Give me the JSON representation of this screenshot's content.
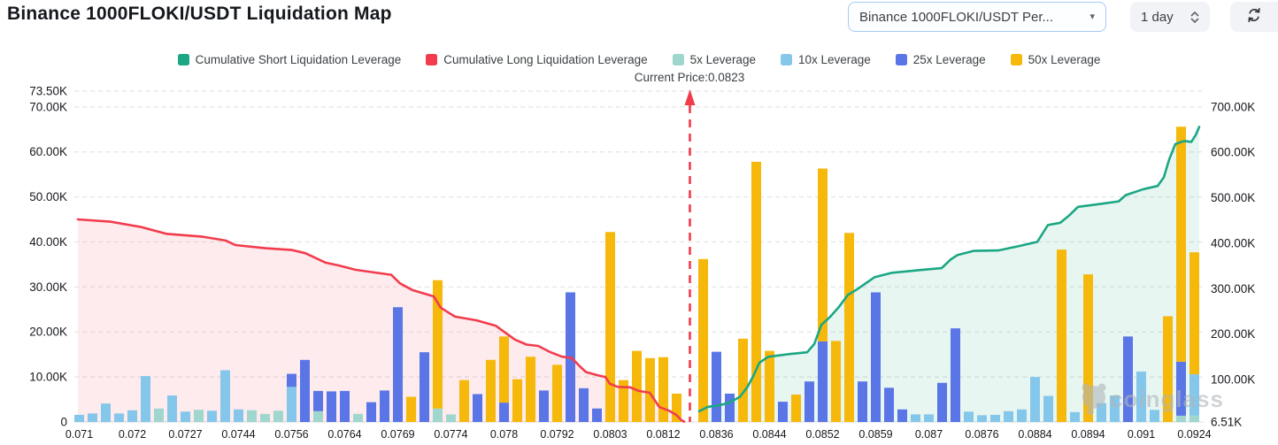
{
  "header": {
    "title": "Binance 1000FLOKI/USDT Liquidation Map",
    "symbol_selector": "Binance 1000FLOKI/USDT Per...",
    "interval_selector": "1 day"
  },
  "annotation": {
    "current_price_label": "Current Price:0.0823",
    "current_price": "0.0823",
    "price_x": 779
  },
  "watermark": {
    "text": "coinglass"
  },
  "legend": [
    {
      "key": "short_line",
      "label": "Cumulative Short Liquidation Leverage",
      "color": "#1ba784"
    },
    {
      "key": "long_line",
      "label": "Cumulative Long Liquidation Leverage",
      "color": "#f23c4d"
    },
    {
      "key": "5x",
      "label": "5x Leverage",
      "color": "#9fd6ce"
    },
    {
      "key": "10x",
      "label": "10x Leverage",
      "color": "#85c7ea"
    },
    {
      "key": "25x",
      "label": "25x Leverage",
      "color": "#5a75e6"
    },
    {
      "key": "50x",
      "label": "50x Leverage",
      "color": "#f5b80b"
    }
  ],
  "chart_data": {
    "type": "bar",
    "title": "Binance 1000FLOKI/USDT Liquidation Map",
    "grid": true,
    "left_axis": {
      "unit": "K",
      "ticks": [
        "73.50K",
        "70.00K",
        "60.00K",
        "50.00K",
        "40.00K",
        "30.00K",
        "20.00K",
        "10.00K",
        "0"
      ],
      "values": [
        73.5,
        70,
        60,
        50,
        40,
        30,
        20,
        10,
        0
      ],
      "max": 73.5
    },
    "right_axis": {
      "unit": "K",
      "ticks": [
        "700.00K",
        "600.00K",
        "500.00K",
        "400.00K",
        "300.00K",
        "200.00K",
        "100.00K",
        "6.51K"
      ],
      "values": [
        700,
        600,
        500,
        400,
        300,
        200,
        100,
        6.51
      ]
    },
    "x_labels": [
      "0.071",
      "0.072",
      "0.0727",
      "0.0744",
      "0.0756",
      "0.0764",
      "0.0769",
      "0.0774",
      "0.078",
      "0.0792",
      "0.0803",
      "0.0812",
      "0.0836",
      "0.0844",
      "0.0852",
      "0.0859",
      "0.087",
      "0.0876",
      "0.0884",
      "0.0894",
      "0.091",
      "0.0924"
    ],
    "bars_unit": "K (left axis)",
    "bars": [
      {
        "slot": 0,
        "label": "0.071",
        "segments": [
          [
            "10x",
            1.6
          ]
        ]
      },
      {
        "slot": 1,
        "segments": [
          [
            "10x",
            1.9
          ]
        ]
      },
      {
        "slot": 2,
        "segments": [
          [
            "10x",
            4.1
          ]
        ]
      },
      {
        "slot": 3,
        "segments": [
          [
            "10x",
            1.9
          ]
        ]
      },
      {
        "slot": 4,
        "label": "0.072",
        "segments": [
          [
            "10x",
            2.6
          ]
        ]
      },
      {
        "slot": 5,
        "segments": [
          [
            "10x",
            10.2
          ]
        ]
      },
      {
        "slot": 6,
        "segments": [
          [
            "5x",
            3.0
          ]
        ]
      },
      {
        "slot": 7,
        "segments": [
          [
            "10x",
            5.9
          ]
        ]
      },
      {
        "slot": 8,
        "label": "0.0727",
        "segments": [
          [
            "10x",
            2.3
          ]
        ]
      },
      {
        "slot": 9,
        "segments": [
          [
            "5x",
            2.7
          ]
        ]
      },
      {
        "slot": 10,
        "segments": [
          [
            "10x",
            2.5
          ]
        ]
      },
      {
        "slot": 11,
        "segments": [
          [
            "10x",
            11.5
          ]
        ]
      },
      {
        "slot": 12,
        "label": "0.0744",
        "segments": [
          [
            "10x",
            2.8
          ]
        ]
      },
      {
        "slot": 13,
        "segments": [
          [
            "5x",
            2.6
          ]
        ]
      },
      {
        "slot": 14,
        "segments": [
          [
            "5x",
            1.8
          ]
        ]
      },
      {
        "slot": 15,
        "segments": [
          [
            "5x",
            2.5
          ]
        ]
      },
      {
        "slot": 16,
        "label": "0.0756",
        "segments": [
          [
            "10x",
            7.8
          ],
          [
            "25x",
            2.9
          ]
        ]
      },
      {
        "slot": 17,
        "segments": [
          [
            "25x",
            13.8
          ]
        ]
      },
      {
        "slot": 18,
        "segments": [
          [
            "5x",
            2.4
          ],
          [
            "25x",
            4.5
          ]
        ]
      },
      {
        "slot": 19,
        "segments": [
          [
            "25x",
            6.8
          ]
        ]
      },
      {
        "slot": 20,
        "label": "0.0764",
        "segments": [
          [
            "25x",
            6.9
          ]
        ]
      },
      {
        "slot": 21,
        "segments": [
          [
            "5x",
            1.8
          ]
        ]
      },
      {
        "slot": 22,
        "segments": [
          [
            "25x",
            4.4
          ]
        ]
      },
      {
        "slot": 23,
        "segments": [
          [
            "25x",
            7.0
          ]
        ]
      },
      {
        "slot": 24,
        "label": "0.0769",
        "segments": [
          [
            "25x",
            25.5
          ]
        ]
      },
      {
        "slot": 25,
        "segments": [
          [
            "50x",
            5.6
          ]
        ]
      },
      {
        "slot": 26,
        "segments": [
          [
            "25x",
            15.5
          ]
        ]
      },
      {
        "slot": 27,
        "segments": [
          [
            "5x",
            3.0
          ],
          [
            "50x",
            28.5
          ]
        ]
      },
      {
        "slot": 28,
        "label": "0.0774",
        "segments": [
          [
            "5x",
            1.7
          ]
        ]
      },
      {
        "slot": 29,
        "segments": [
          [
            "50x",
            9.3
          ]
        ]
      },
      {
        "slot": 30,
        "segments": [
          [
            "25x",
            6.2
          ]
        ]
      },
      {
        "slot": 31,
        "segments": [
          [
            "50x",
            13.8
          ]
        ]
      },
      {
        "slot": 32,
        "label": "0.078",
        "segments": [
          [
            "25x",
            4.3
          ],
          [
            "50x",
            14.7
          ]
        ]
      },
      {
        "slot": 33,
        "segments": [
          [
            "50x",
            9.5
          ]
        ]
      },
      {
        "slot": 34,
        "segments": [
          [
            "50x",
            14.5
          ]
        ]
      },
      {
        "slot": 35,
        "segments": [
          [
            "25x",
            7.0
          ]
        ]
      },
      {
        "slot": 36,
        "label": "0.0792",
        "segments": [
          [
            "50x",
            12.7
          ]
        ]
      },
      {
        "slot": 37,
        "segments": [
          [
            "25x",
            28.8
          ]
        ]
      },
      {
        "slot": 38,
        "segments": [
          [
            "25x",
            7.5
          ]
        ]
      },
      {
        "slot": 39,
        "segments": [
          [
            "25x",
            3.0
          ]
        ]
      },
      {
        "slot": 40,
        "label": "0.0803",
        "segments": [
          [
            "50x",
            42.2
          ]
        ]
      },
      {
        "slot": 41,
        "segments": [
          [
            "50x",
            9.3
          ]
        ]
      },
      {
        "slot": 42,
        "segments": [
          [
            "50x",
            15.8
          ]
        ]
      },
      {
        "slot": 43,
        "segments": [
          [
            "50x",
            14.2
          ]
        ]
      },
      {
        "slot": 44,
        "label": "0.0812",
        "segments": [
          [
            "50x",
            14.4
          ]
        ]
      },
      {
        "slot": 45,
        "segments": [
          [
            "50x",
            6.3
          ]
        ]
      },
      {
        "slot": 47,
        "segments": [
          [
            "50x",
            36.2
          ]
        ]
      },
      {
        "slot": 48,
        "label": "0.0836",
        "segments": [
          [
            "25x",
            15.6
          ]
        ]
      },
      {
        "slot": 49,
        "segments": [
          [
            "25x",
            6.3
          ]
        ]
      },
      {
        "slot": 50,
        "segments": [
          [
            "50x",
            18.5
          ]
        ]
      },
      {
        "slot": 51,
        "segments": [
          [
            "50x",
            57.8
          ]
        ]
      },
      {
        "slot": 52,
        "label": "0.0844",
        "segments": [
          [
            "50x",
            15.8
          ]
        ]
      },
      {
        "slot": 53,
        "segments": [
          [
            "25x",
            4.5
          ]
        ]
      },
      {
        "slot": 54,
        "segments": [
          [
            "50x",
            6.1
          ]
        ]
      },
      {
        "slot": 55,
        "segments": [
          [
            "25x",
            9.0
          ]
        ]
      },
      {
        "slot": 56,
        "label": "0.0852",
        "segments": [
          [
            "25x",
            17.9
          ],
          [
            "50x",
            38.4
          ]
        ]
      },
      {
        "slot": 57,
        "segments": [
          [
            "50x",
            18.0
          ]
        ]
      },
      {
        "slot": 58,
        "segments": [
          [
            "50x",
            42.0
          ]
        ]
      },
      {
        "slot": 59,
        "segments": [
          [
            "25x",
            9.0
          ]
        ]
      },
      {
        "slot": 60,
        "label": "0.0859",
        "segments": [
          [
            "25x",
            28.8
          ]
        ]
      },
      {
        "slot": 61,
        "segments": [
          [
            "25x",
            7.6
          ]
        ]
      },
      {
        "slot": 62,
        "segments": [
          [
            "25x",
            2.8
          ]
        ]
      },
      {
        "slot": 63,
        "segments": [
          [
            "10x",
            1.7
          ]
        ]
      },
      {
        "slot": 64,
        "label": "0.087",
        "segments": [
          [
            "10x",
            1.7
          ]
        ]
      },
      {
        "slot": 65,
        "segments": [
          [
            "25x",
            8.7
          ]
        ]
      },
      {
        "slot": 66,
        "segments": [
          [
            "25x",
            20.8
          ]
        ]
      },
      {
        "slot": 67,
        "segments": [
          [
            "10x",
            2.3
          ]
        ]
      },
      {
        "slot": 68,
        "label": "0.0876",
        "segments": [
          [
            "10x",
            1.5
          ]
        ]
      },
      {
        "slot": 69,
        "segments": [
          [
            "10x",
            1.6
          ]
        ]
      },
      {
        "slot": 70,
        "segments": [
          [
            "10x",
            2.4
          ]
        ]
      },
      {
        "slot": 71,
        "segments": [
          [
            "10x",
            2.8
          ]
        ]
      },
      {
        "slot": 72,
        "label": "0.0884",
        "segments": [
          [
            "10x",
            10.0
          ]
        ]
      },
      {
        "slot": 73,
        "segments": [
          [
            "10x",
            5.8
          ]
        ]
      },
      {
        "slot": 74,
        "segments": [
          [
            "50x",
            38.3
          ]
        ]
      },
      {
        "slot": 75,
        "segments": [
          [
            "10x",
            2.2
          ]
        ]
      },
      {
        "slot": 76,
        "label": "0.0894",
        "segments": [
          [
            "50x",
            32.8
          ]
        ]
      },
      {
        "slot": 77,
        "segments": [
          [
            "10x",
            4.2
          ]
        ]
      },
      {
        "slot": 78,
        "segments": [
          [
            "10x",
            5.9
          ]
        ]
      },
      {
        "slot": 79,
        "segments": [
          [
            "25x",
            19.0
          ]
        ]
      },
      {
        "slot": 80,
        "label": "0.091",
        "segments": [
          [
            "10x",
            11.2
          ]
        ]
      },
      {
        "slot": 81,
        "segments": [
          [
            "10x",
            2.7
          ]
        ]
      },
      {
        "slot": 82,
        "segments": [
          [
            "50x",
            23.5
          ]
        ]
      },
      {
        "slot": 83,
        "segments": [
          [
            "5x",
            1.4
          ],
          [
            "25x",
            12.0
          ],
          [
            "50x",
            52.2
          ]
        ]
      },
      {
        "slot": 84,
        "label": "0.0924",
        "segments": [
          [
            "5x",
            1.4
          ],
          [
            "10x",
            9.2
          ],
          [
            "50x",
            27.1
          ]
        ]
      }
    ],
    "series": [
      {
        "name": "Cumulative Long Liquidation Leverage",
        "axis": "left",
        "unit": "K",
        "color": "#f23c4d",
        "fill": "#f23c4d",
        "points": [
          [
            88,
            45.0
          ],
          [
            125,
            44.5
          ],
          [
            160,
            43.3
          ],
          [
            188,
            41.8
          ],
          [
            228,
            41.2
          ],
          [
            255,
            40.3
          ],
          [
            266,
            39.3
          ],
          [
            300,
            38.6
          ],
          [
            330,
            38.2
          ],
          [
            345,
            37.5
          ],
          [
            368,
            35.4
          ],
          [
            382,
            34.8
          ],
          [
            402,
            33.8
          ],
          [
            442,
            32.7
          ],
          [
            452,
            30.8
          ],
          [
            466,
            29.3
          ],
          [
            490,
            27.9
          ],
          [
            498,
            25.4
          ],
          [
            514,
            23.4
          ],
          [
            538,
            22.6
          ],
          [
            560,
            21.4
          ],
          [
            572,
            19.7
          ],
          [
            582,
            18.3
          ],
          [
            595,
            17.2
          ],
          [
            608,
            16.9
          ],
          [
            622,
            15.5
          ],
          [
            635,
            14.5
          ],
          [
            646,
            14.2
          ],
          [
            655,
            12.4
          ],
          [
            662,
            11.1
          ],
          [
            675,
            10.4
          ],
          [
            684,
            10.0
          ],
          [
            689,
            8.5
          ],
          [
            698,
            7.8
          ],
          [
            712,
            7.7
          ],
          [
            722,
            6.9
          ],
          [
            734,
            6.5
          ],
          [
            740,
            4.8
          ],
          [
            745,
            3.3
          ],
          [
            755,
            2.6
          ],
          [
            764,
            1.6
          ],
          [
            770,
            0.4
          ],
          [
            773,
            0.1
          ]
        ]
      },
      {
        "name": "Cumulative Short Liquidation Leverage",
        "axis": "right",
        "unit": "K",
        "color": "#1ba784",
        "fill": "#1ba784",
        "points": [
          [
            790,
            30
          ],
          [
            800,
            40
          ],
          [
            812,
            43
          ],
          [
            824,
            49
          ],
          [
            836,
            62
          ],
          [
            844,
            82
          ],
          [
            851,
            107
          ],
          [
            858,
            137
          ],
          [
            868,
            150
          ],
          [
            892,
            156
          ],
          [
            912,
            160
          ],
          [
            920,
            178
          ],
          [
            928,
            220
          ],
          [
            938,
            238
          ],
          [
            948,
            260
          ],
          [
            958,
            286
          ],
          [
            968,
            298
          ],
          [
            988,
            325
          ],
          [
            1008,
            335
          ],
          [
            1040,
            341
          ],
          [
            1064,
            345
          ],
          [
            1074,
            364
          ],
          [
            1082,
            374
          ],
          [
            1100,
            383
          ],
          [
            1128,
            384
          ],
          [
            1152,
            394
          ],
          [
            1172,
            403
          ],
          [
            1184,
            440
          ],
          [
            1198,
            445
          ],
          [
            1208,
            461
          ],
          [
            1218,
            480
          ],
          [
            1242,
            486
          ],
          [
            1264,
            492
          ],
          [
            1272,
            506
          ],
          [
            1292,
            519
          ],
          [
            1308,
            526
          ],
          [
            1315,
            545
          ],
          [
            1321,
            584
          ],
          [
            1328,
            618
          ],
          [
            1338,
            625
          ],
          [
            1346,
            623
          ],
          [
            1351,
            638
          ],
          [
            1355,
            656
          ]
        ]
      }
    ],
    "price_line": {
      "x": 779,
      "color": "#f23c4d",
      "style": "dashed-vertical-with-arrow"
    }
  }
}
